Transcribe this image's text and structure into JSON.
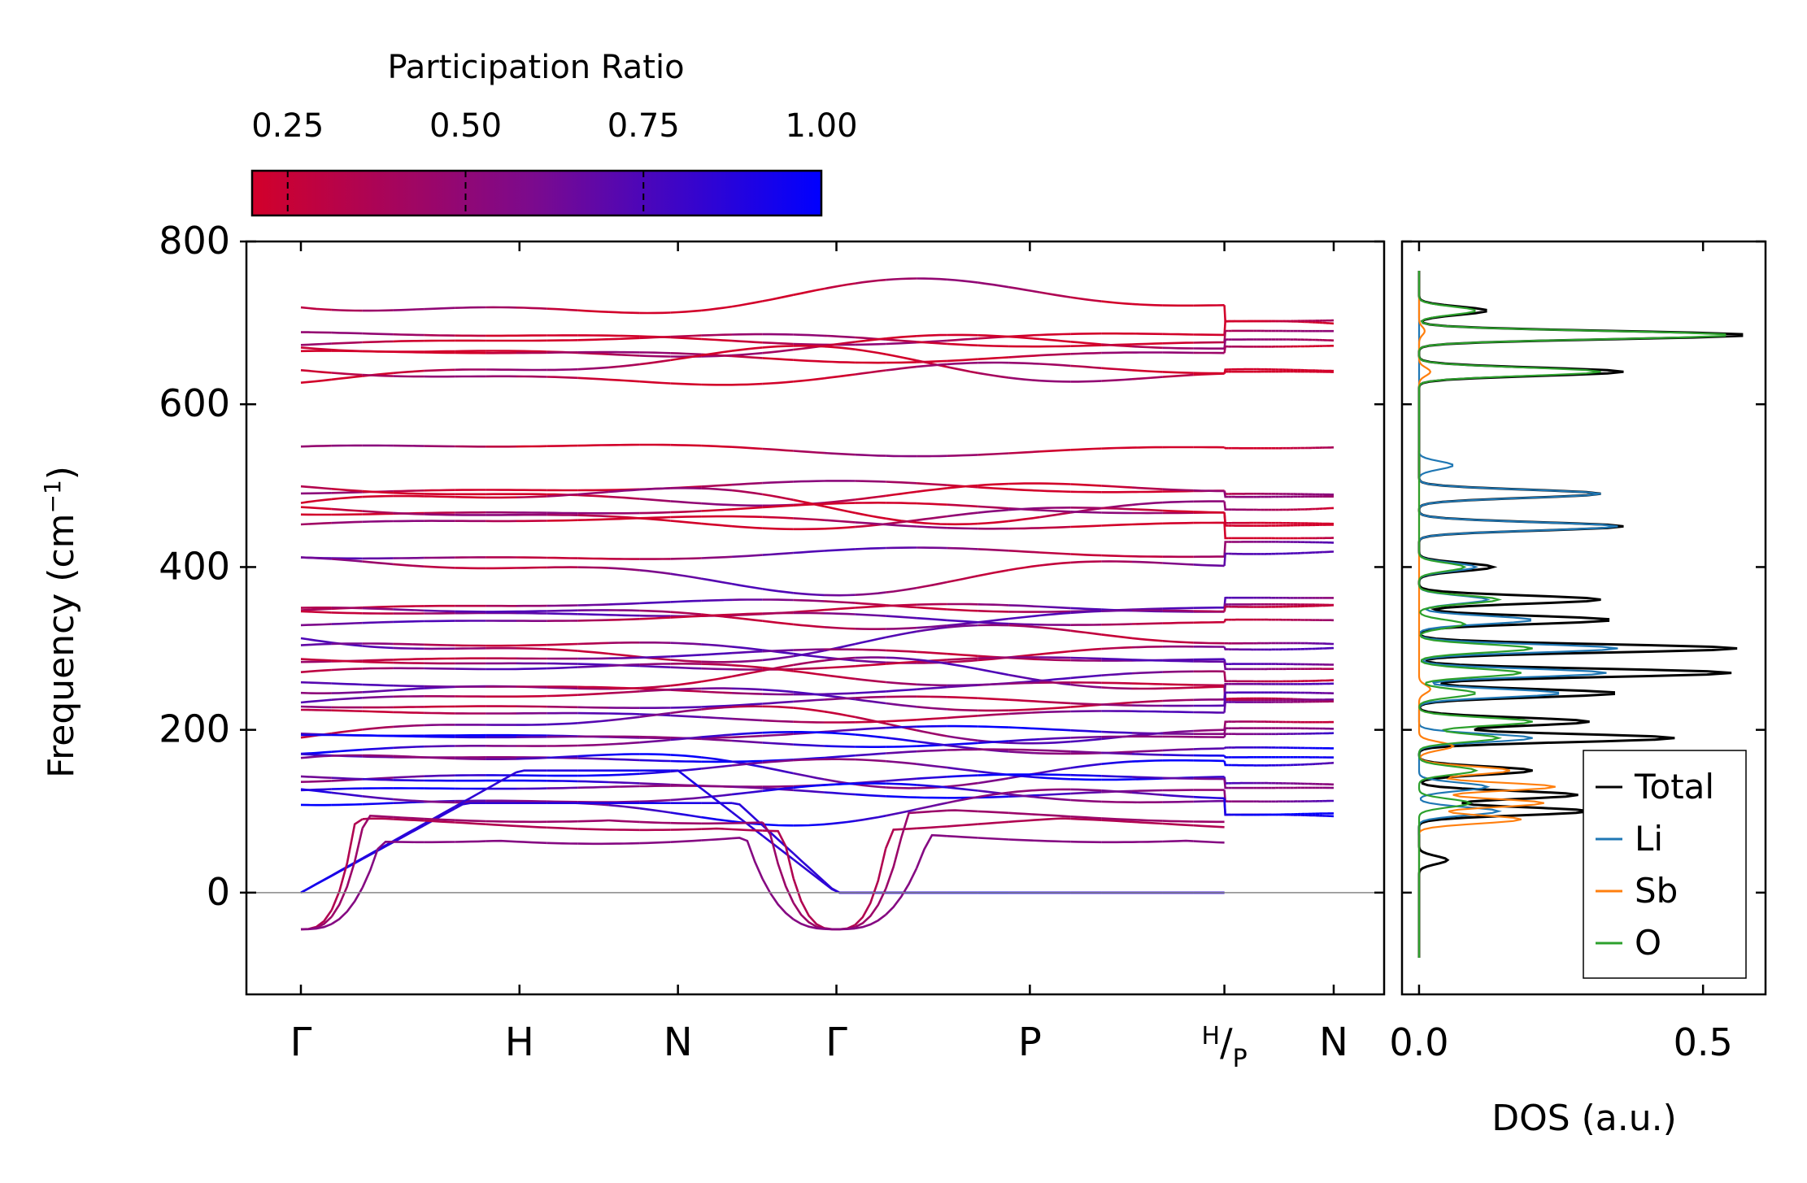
{
  "chart_data": [
    {
      "type": "line",
      "name": "phonon-band-structure",
      "xlabel": "",
      "ylabel": "Frequency (cm",
      "ylabel_sup": "−1",
      "ylabel_close": ")",
      "ylim": [
        -125,
        800
      ],
      "yticks": [
        0,
        200,
        400,
        600,
        800
      ],
      "ytick_labels": [
        "0",
        "200",
        "400",
        "600",
        "800"
      ],
      "kpoints": [
        {
          "label": "Γ",
          "x": 0.0
        },
        {
          "label": "H",
          "x": 2.0
        },
        {
          "label": "N",
          "x": 3.45
        },
        {
          "label": "Γ",
          "x": 4.9
        },
        {
          "label": "P",
          "x": 6.67
        },
        {
          "label": "H/P",
          "x": 8.45
        },
        {
          "label": "N",
          "x": 9.45
        }
      ],
      "break_x": 8.45,
      "zero_line": 0,
      "colorbar": {
        "title": "Participation Ratio",
        "range": [
          0.2,
          1.0
        ],
        "ticks": [
          0.25,
          0.5,
          0.75,
          1.0
        ],
        "tick_labels": [
          "0.25",
          "0.50",
          "0.75",
          "1.00"
        ],
        "low_color": "#d2002a",
        "mid_color": "#7a0a8f",
        "high_color": "#0000ff"
      },
      "bands_upper": [
        728,
        682,
        678,
        670,
        660,
        646,
        637
      ],
      "bands_mid": [
        545,
        497,
        490,
        478,
        470,
        462,
        455,
        415,
        392,
        352,
        346,
        340,
        335,
        305,
        298,
        290,
        282,
        270,
        262,
        252,
        238,
        232,
        218,
        205,
        196,
        188,
        182
      ],
      "bands_low": [
        168,
        155,
        148,
        138,
        125,
        118,
        108
      ],
      "acoustic": {
        "imaginary_min": -45,
        "gamma_value": 0
      }
    },
    {
      "type": "line",
      "name": "phonon-dos",
      "xlabel": "DOS (a.u.)",
      "ylabel": "",
      "xlim": [
        -0.03,
        0.61
      ],
      "ylim": [
        -125,
        800
      ],
      "xticks": [
        0.0,
        0.5
      ],
      "xtick_labels": [
        "0.0",
        "0.5"
      ],
      "series": [
        {
          "name": "Total",
          "color": "#000000",
          "peaks": [
            [
              40,
              0.05
            ],
            [
              100,
              0.3
            ],
            [
              120,
              0.28
            ],
            [
              150,
              0.2
            ],
            [
              190,
              0.45
            ],
            [
              210,
              0.3
            ],
            [
              245,
              0.35
            ],
            [
              270,
              0.55
            ],
            [
              300,
              0.56
            ],
            [
              335,
              0.34
            ],
            [
              360,
              0.32
            ],
            [
              400,
              0.13
            ],
            [
              450,
              0.36
            ],
            [
              490,
              0.32
            ],
            [
              640,
              0.36
            ],
            [
              685,
              0.58
            ],
            [
              715,
              0.12
            ]
          ]
        },
        {
          "name": "Li",
          "color": "#1f77b4",
          "peaks": [
            [
              100,
              0.14
            ],
            [
              130,
              0.12
            ],
            [
              190,
              0.2
            ],
            [
              245,
              0.25
            ],
            [
              270,
              0.33
            ],
            [
              300,
              0.35
            ],
            [
              335,
              0.2
            ],
            [
              360,
              0.12
            ],
            [
              400,
              0.1
            ],
            [
              450,
              0.35
            ],
            [
              490,
              0.32
            ],
            [
              525,
              0.06
            ]
          ]
        },
        {
          "name": "Sb",
          "color": "#ff7f0e",
          "peaks": [
            [
              90,
              0.18
            ],
            [
              110,
              0.22
            ],
            [
              130,
              0.24
            ],
            [
              150,
              0.16
            ],
            [
              180,
              0.06
            ],
            [
              250,
              0.02
            ],
            [
              640,
              0.02
            ],
            [
              690,
              0.01
            ]
          ]
        },
        {
          "name": "O",
          "color": "#2ca02c",
          "peaks": [
            [
              110,
              0.09
            ],
            [
              150,
              0.1
            ],
            [
              190,
              0.14
            ],
            [
              210,
              0.2
            ],
            [
              245,
              0.1
            ],
            [
              270,
              0.18
            ],
            [
              300,
              0.2
            ],
            [
              330,
              0.08
            ],
            [
              360,
              0.14
            ],
            [
              400,
              0.08
            ],
            [
              640,
              0.32
            ],
            [
              685,
              0.55
            ],
            [
              715,
              0.1
            ]
          ]
        }
      ],
      "legend_position": "lower-right"
    }
  ]
}
